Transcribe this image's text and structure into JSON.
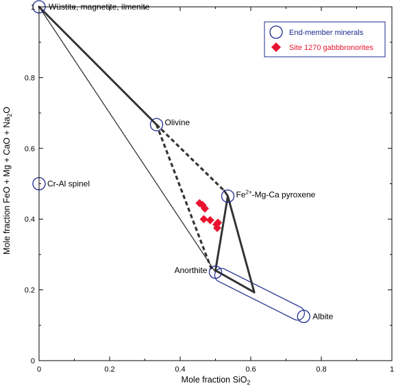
{
  "chart_data": {
    "type": "scatter",
    "xlabel_main": "Mole fraction SiO",
    "xlabel_sub": "2",
    "ylabel_parts": [
      "Mole fraction FeO + Mg + CaO + Na",
      "2",
      "O"
    ],
    "xlim": [
      0,
      1
    ],
    "ylim": [
      0,
      1
    ],
    "xticks": [
      "0",
      "0.2",
      "0.4",
      "0.6",
      "0.8",
      "1"
    ],
    "xtick_values": [
      0,
      0.2,
      0.4,
      0.6,
      0.8,
      1
    ],
    "yticks": [
      "0",
      "0.2",
      "0.4",
      "0.6",
      "0.8",
      "1"
    ],
    "ytick_values": [
      0,
      0.2,
      0.4,
      0.6,
      0.8,
      1
    ],
    "legend": {
      "placement": "top-right",
      "items": [
        {
          "label": "End-member minerals",
          "marker": "circle",
          "color": "#1a2a8c"
        },
        {
          "label": "Site 1270 gabbbronorites",
          "marker": "diamond",
          "color": "#e8142f"
        }
      ]
    },
    "series": [
      {
        "name": "End-member minerals",
        "marker": "circle",
        "color": "#1a2a8c",
        "points": [
          {
            "x": 0,
            "y": 1,
            "label": "Wüstite, magnetite, ilmenite"
          },
          {
            "x": 0.333,
            "y": 0.667,
            "label": "Olivine"
          },
          {
            "x": 0,
            "y": 0.5,
            "label": "Cr-Al spinel"
          },
          {
            "x": 0.535,
            "y": 0.465,
            "label_prefix": "Fe",
            "label_sup": "2+",
            "label_rest": "-Mg-Ca pyroxene"
          },
          {
            "x": 0.5,
            "y": 0.25,
            "label": "Anorthite"
          },
          {
            "x": 0.75,
            "y": 0.125,
            "label": "Albite"
          }
        ]
      },
      {
        "name": "Site 1270 gabbbronorites",
        "marker": "diamond",
        "color": "#e8142f",
        "points": [
          {
            "x": 0.455,
            "y": 0.445
          },
          {
            "x": 0.463,
            "y": 0.44
          },
          {
            "x": 0.47,
            "y": 0.43
          },
          {
            "x": 0.467,
            "y": 0.4
          },
          {
            "x": 0.485,
            "y": 0.397
          },
          {
            "x": 0.503,
            "y": 0.385
          },
          {
            "x": 0.507,
            "y": 0.39
          },
          {
            "x": 0.505,
            "y": 0.375
          }
        ]
      }
    ],
    "lines": [
      {
        "style": "thin",
        "points": [
          [
            0,
            1
          ],
          [
            0.5,
            0.25
          ]
        ]
      },
      {
        "style": "thick",
        "points": [
          [
            0,
            1
          ],
          [
            0.333,
            0.667
          ]
        ]
      },
      {
        "style": "thick-dashed",
        "points": [
          [
            0.333,
            0.667
          ],
          [
            0.525,
            0.48
          ]
        ]
      },
      {
        "style": "thick-dashed",
        "points": [
          [
            0.333,
            0.667
          ],
          [
            0.49,
            0.255
          ]
        ]
      },
      {
        "style": "thick",
        "points": [
          [
            0.535,
            0.465
          ],
          [
            0.5,
            0.255
          ],
          [
            0.61,
            0.193
          ],
          [
            0.535,
            0.465
          ]
        ]
      },
      {
        "style": "thick",
        "points": [
          [
            0.525,
            0.48
          ],
          [
            0.535,
            0.465
          ]
        ]
      }
    ],
    "outlines": [
      {
        "color": "#1a2a8c",
        "from": [
          0.5,
          0.25
        ],
        "to": [
          0.75,
          0.125
        ]
      }
    ]
  }
}
